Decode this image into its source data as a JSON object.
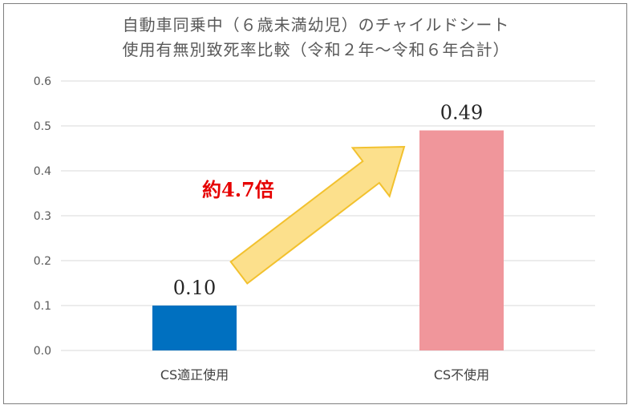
{
  "chart_data": {
    "type": "bar",
    "title_lines": [
      "自動車同乗中（６歳未満幼児）のチャイルドシート",
      "使用有無別致死率比較（令和２年～令和６年合計）"
    ],
    "categories": [
      "CS適正使用",
      "CS不使用"
    ],
    "values": [
      0.1,
      0.49
    ],
    "value_labels": [
      "0.10",
      "0.49"
    ],
    "yticks": [
      "0.0",
      "0.1",
      "0.2",
      "0.3",
      "0.4",
      "0.5",
      "0.6"
    ],
    "ylim": [
      0,
      0.6
    ],
    "grid": true,
    "bar_colors": [
      "#0070c0",
      "#f0969b"
    ],
    "annotation": "約4.7倍",
    "annotation_color": "#e60000",
    "arrow_color": "#fce08c"
  }
}
